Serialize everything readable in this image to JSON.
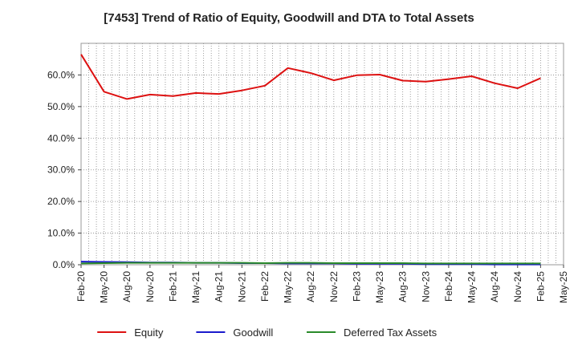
{
  "chart_data": {
    "type": "line",
    "title": "[7453]  Trend of Ratio of Equity, Goodwill and DTA to Total Assets",
    "xlabel": "",
    "ylabel": "",
    "ylim": [
      0,
      0.7
    ],
    "y_ticks": [
      0,
      0.1,
      0.2,
      0.3,
      0.4,
      0.5,
      0.6
    ],
    "y_tick_labels": [
      "0.0%",
      "10.0%",
      "20.0%",
      "30.0%",
      "40.0%",
      "50.0%",
      "60.0%"
    ],
    "x": [
      "Feb-20",
      "May-20",
      "Aug-20",
      "Nov-20",
      "Feb-21",
      "May-21",
      "Aug-21",
      "Nov-21",
      "Feb-22",
      "May-22",
      "Aug-22",
      "Nov-22",
      "Feb-23",
      "May-23",
      "Aug-23",
      "Nov-23",
      "Feb-24",
      "May-24",
      "Aug-24",
      "Nov-24",
      "Feb-25"
    ],
    "x_ticks": [
      "Feb-20",
      "May-20",
      "Aug-20",
      "Nov-20",
      "Feb-21",
      "May-21",
      "Aug-21",
      "Nov-21",
      "Feb-22",
      "May-22",
      "Aug-22",
      "Nov-22",
      "Feb-23",
      "May-23",
      "Aug-23",
      "Nov-23",
      "Feb-24",
      "May-24",
      "Aug-24",
      "Nov-24",
      "Feb-25",
      "May-25"
    ],
    "grid": true,
    "legend_position": "bottom",
    "series": [
      {
        "name": "Equity",
        "color": "#dd1111",
        "values": [
          0.665,
          0.547,
          0.524,
          0.538,
          0.533,
          0.543,
          0.54,
          0.551,
          0.566,
          0.622,
          0.606,
          0.583,
          0.599,
          0.601,
          0.582,
          0.579,
          0.587,
          0.596,
          0.574,
          0.558,
          0.59
        ]
      },
      {
        "name": "Goodwill",
        "color": "#1a1acc",
        "values": [
          0.01,
          0.009,
          0.008,
          0.007,
          0.007,
          0.006,
          0.006,
          0.005,
          0.005,
          0.004,
          0.004,
          0.004,
          0.003,
          0.003,
          0.003,
          0.002,
          0.002,
          0.002,
          0.001,
          0.001,
          0.001
        ]
      },
      {
        "name": "Deferred Tax Assets",
        "color": "#2a8a2a",
        "values": [
          0.004,
          0.005,
          0.006,
          0.006,
          0.006,
          0.006,
          0.006,
          0.006,
          0.005,
          0.006,
          0.006,
          0.005,
          0.005,
          0.005,
          0.005,
          0.004,
          0.004,
          0.004,
          0.004,
          0.004,
          0.004
        ]
      }
    ]
  }
}
